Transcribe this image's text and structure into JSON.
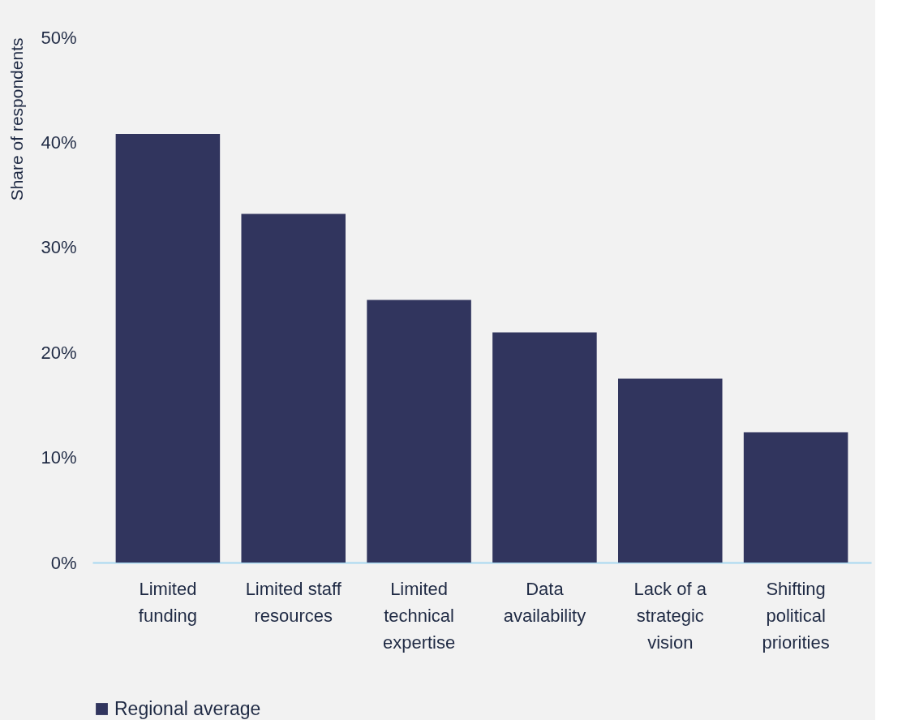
{
  "chart_data": {
    "type": "bar",
    "ylabel": "Share of respondents",
    "categories": [
      "Limited funding",
      "Limited staff resources",
      "Limited technical expertise",
      "Data availability",
      "Lack of a strategic vision",
      "Shifting political priorities"
    ],
    "series": [
      {
        "name": "Regional average",
        "color": "#31355e",
        "values": [
          40.8,
          33.2,
          25.0,
          21.9,
          17.5,
          12.4
        ]
      }
    ],
    "ylim": [
      0,
      50
    ],
    "yticks": [
      {
        "value": 0,
        "label": "0%"
      },
      {
        "value": 10,
        "label": "10%"
      },
      {
        "value": 20,
        "label": "20%"
      },
      {
        "value": 30,
        "label": "30%"
      },
      {
        "value": 40,
        "label": "40%"
      },
      {
        "value": 50,
        "label": "50%"
      }
    ],
    "grid": false,
    "legend": "bottom"
  }
}
